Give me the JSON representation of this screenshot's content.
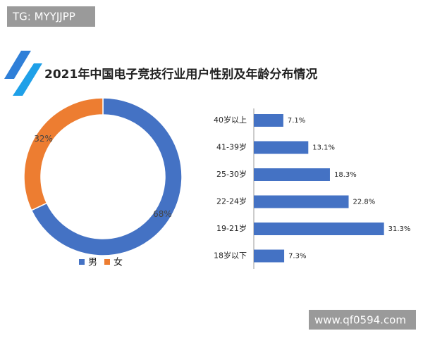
{
  "watermark_top": "TG: MYYJJPP",
  "watermark_bottom": "www.qf0594.com",
  "title": "2021年中国电子竞技行业用户性别及年龄分布情况",
  "chart_data": [
    {
      "type": "pie",
      "donut": true,
      "categories": [
        "男",
        "女"
      ],
      "values": [
        68,
        32
      ],
      "value_labels": [
        "68%",
        "32%"
      ],
      "colors": [
        "#4472c4",
        "#ed7d31"
      ]
    },
    {
      "type": "bar",
      "orientation": "horizontal",
      "categories": [
        "40岁以上",
        "41-39岁",
        "25-30岁",
        "22-24岁",
        "19-21岁",
        "18岁以下"
      ],
      "values": [
        7.1,
        13.1,
        18.3,
        22.8,
        31.3,
        7.3
      ],
      "value_labels": [
        "7.1%",
        "13.1%",
        "18.3%",
        "22.8%",
        "31.3%",
        "7.3%"
      ],
      "color": "#4472c4"
    }
  ]
}
